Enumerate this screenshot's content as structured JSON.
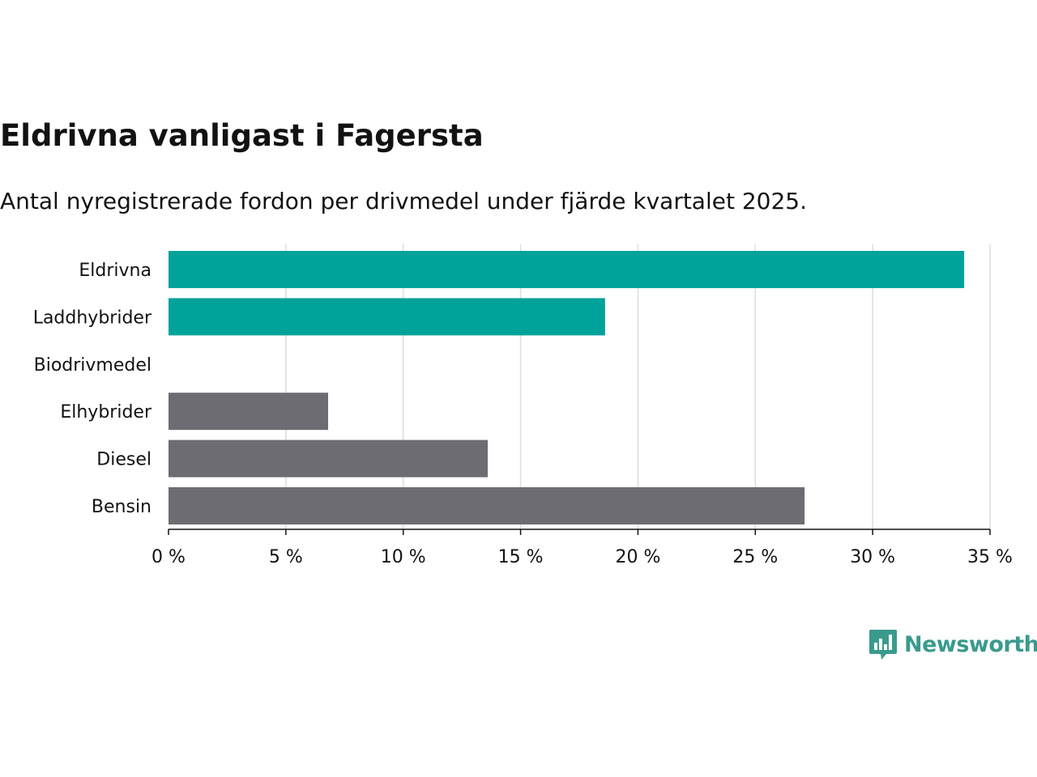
{
  "chart_data": {
    "type": "bar",
    "orientation": "horizontal",
    "title": "Eldrivna vanligast i Fagersta",
    "subtitle": "Antal nyregistrerade fordon per drivmedel under fjärde kvartalet 2025.",
    "categories": [
      "Eldrivna",
      "Laddhybrider",
      "Biodrivmedel",
      "Elhybrider",
      "Diesel",
      "Bensin"
    ],
    "values": [
      33.9,
      18.6,
      0,
      6.8,
      13.6,
      27.1
    ],
    "colors": [
      "#00a39a",
      "#00a39a",
      "#00a39a",
      "#6d6c72",
      "#6d6c72",
      "#6d6c72"
    ],
    "xlim": [
      0,
      35
    ],
    "xticks": [
      0,
      5,
      10,
      15,
      20,
      25,
      30,
      35
    ],
    "tick_labels": [
      "0 %",
      "5 %",
      "10 %",
      "15 %",
      "20 %",
      "25 %",
      "30 %",
      "35 %"
    ],
    "xlabel": "",
    "ylabel": "",
    "grid": true,
    "legend": "none"
  },
  "branding": {
    "logo_text": "Newsworthy"
  },
  "colors": {
    "accent": "#00a39a",
    "neutral": "#6d6c72",
    "grid": "#dddddd",
    "text": "#121212",
    "logo": "#3a9a8e"
  },
  "icons": {
    "logo_icon": "bar-chart-speech-bubble"
  }
}
